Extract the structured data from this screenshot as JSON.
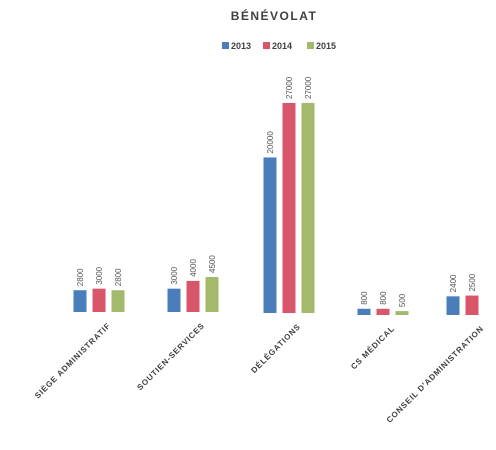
{
  "chart_data": {
    "type": "bar",
    "title": "BÉNÉVOLAT",
    "categories": [
      "SIÈGE ADMINISTRATIF",
      "SOUTIEN-SERVICES",
      "DÉLÉGATIONS",
      "CS MÉDICAL",
      "CONSEIL D'ADMINISTRATION"
    ],
    "series": [
      {
        "name": "2013",
        "color": "#4a7ebb",
        "values": [
          2800,
          3000,
          20000,
          800,
          2400
        ]
      },
      {
        "name": "2014",
        "color": "#d9566a",
        "values": [
          3000,
          4000,
          27000,
          800,
          2500
        ]
      },
      {
        "name": "2015",
        "color": "#a3b96b",
        "values": [
          2800,
          4500,
          27000,
          500,
          null
        ]
      }
    ],
    "data_labels": [
      [
        "2800",
        "3000",
        "20000",
        "800",
        "2400"
      ],
      [
        "3000",
        "4000",
        "27000",
        "800",
        "2500"
      ],
      [
        "2800",
        "4500",
        "27000",
        "500",
        ""
      ]
    ],
    "ylim": [
      0,
      27000
    ],
    "grid": false,
    "legend": "top-center",
    "xlabel": "",
    "ylabel": ""
  }
}
